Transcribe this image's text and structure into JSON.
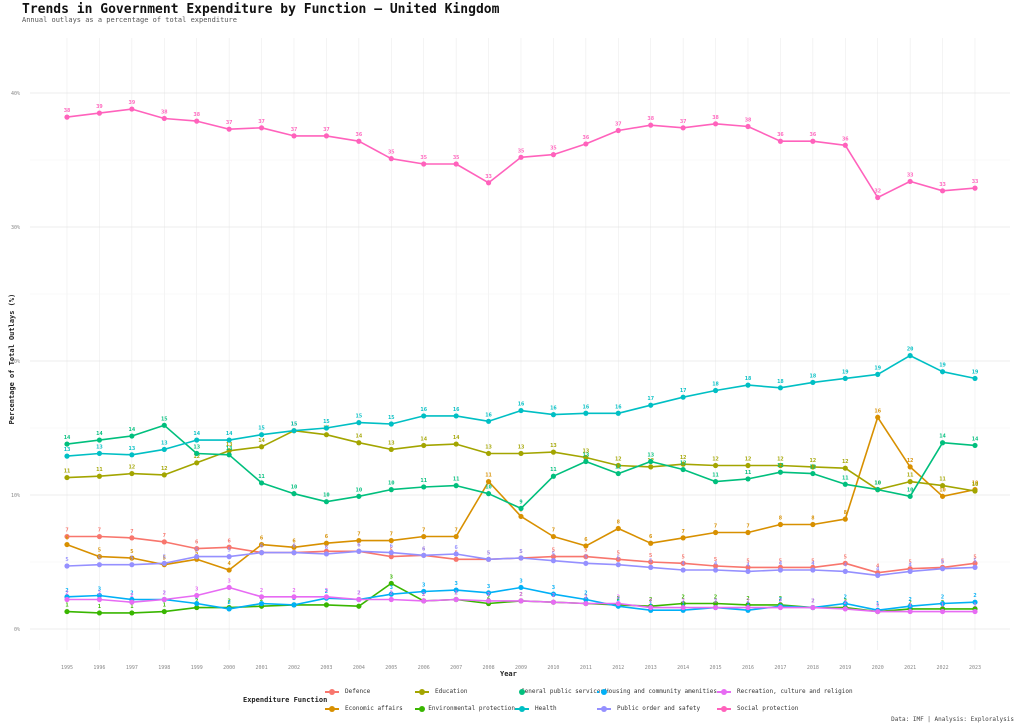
{
  "header": {
    "title": "Trends in Government Expenditure by Function — United Kingdom",
    "subtitle": "Annual outlays as a percentage of total expenditure"
  },
  "axes": {
    "xlabel": "Year",
    "ylabel": "Percentage of Total Outlays (%)",
    "yticks": [
      "0%",
      "10%",
      "20%",
      "30%",
      "40%"
    ]
  },
  "legend": {
    "title": "Expenditure Function"
  },
  "caption": "Data: IMF | Analysis: Exploralysis",
  "chart_data": {
    "type": "line",
    "title": "Trends in Government Expenditure by Function — United Kingdom",
    "subtitle": "Annual outlays as a percentage of total expenditure",
    "xlabel": "Year",
    "ylabel": "Percentage of Total Outlays (%)",
    "ylim": [
      -2.5,
      44
    ],
    "yticks": [
      0,
      10,
      20,
      30,
      40
    ],
    "grid": true,
    "legend_position": "bottom",
    "x": [
      1995,
      1996,
      1997,
      1998,
      1999,
      2000,
      2001,
      2002,
      2003,
      2004,
      2005,
      2006,
      2007,
      2008,
      2009,
      2010,
      2011,
      2012,
      2013,
      2014,
      2015,
      2016,
      2017,
      2018,
      2019,
      2020,
      2021,
      2022,
      2023
    ],
    "series": [
      {
        "name": "Defence",
        "color": "#F8766D",
        "values": [
          6.9,
          6.9,
          6.8,
          6.5,
          6.0,
          6.1,
          5.7,
          5.7,
          5.8,
          5.8,
          5.4,
          5.5,
          5.2,
          5.2,
          5.3,
          5.4,
          5.4,
          5.2,
          5.0,
          4.9,
          4.7,
          4.6,
          4.6,
          4.6,
          4.9,
          4.2,
          4.5,
          4.6,
          4.9
        ]
      },
      {
        "name": "Economic affairs",
        "color": "#D89000",
        "values": [
          6.3,
          5.4,
          5.3,
          4.8,
          5.2,
          4.4,
          6.3,
          6.1,
          6.4,
          6.6,
          6.6,
          6.9,
          6.9,
          11.0,
          8.4,
          6.9,
          6.2,
          7.5,
          6.4,
          6.8,
          7.2,
          7.2,
          7.8,
          7.8,
          8.2,
          15.8,
          12.1,
          9.9,
          10.4
        ]
      },
      {
        "name": "Education",
        "color": "#A3A500",
        "values": [
          11.3,
          11.4,
          11.6,
          11.5,
          12.4,
          13.3,
          13.6,
          14.8,
          14.5,
          13.9,
          13.4,
          13.7,
          13.8,
          13.1,
          13.1,
          13.2,
          12.8,
          12.2,
          12.1,
          12.3,
          12.2,
          12.2,
          12.2,
          12.1,
          12.0,
          10.4,
          11.0,
          10.7,
          10.3
        ]
      },
      {
        "name": "Environmental protection",
        "color": "#39B600",
        "values": [
          1.3,
          1.2,
          1.2,
          1.3,
          1.6,
          1.6,
          1.7,
          1.8,
          1.8,
          1.7,
          3.4,
          2.1,
          2.2,
          1.9,
          2.1,
          2.0,
          1.9,
          1.8,
          1.7,
          1.9,
          1.9,
          1.8,
          1.8,
          1.6,
          1.6,
          1.3,
          1.5,
          1.5,
          1.5
        ]
      },
      {
        "name": "General public services",
        "color": "#00BF7D",
        "values": [
          13.8,
          14.1,
          14.4,
          15.2,
          13.1,
          13.0,
          10.9,
          10.1,
          9.5,
          9.9,
          10.4,
          10.6,
          10.7,
          10.1,
          9.0,
          11.4,
          12.5,
          11.6,
          12.5,
          11.9,
          11.0,
          11.2,
          11.7,
          11.6,
          10.8,
          10.4,
          9.9,
          13.9,
          13.7
        ]
      },
      {
        "name": "Health",
        "color": "#00BFC4",
        "values": [
          12.9,
          13.1,
          13.0,
          13.4,
          14.1,
          14.1,
          14.5,
          14.8,
          15.0,
          15.4,
          15.3,
          15.9,
          15.9,
          15.5,
          16.3,
          16.0,
          16.1,
          16.1,
          16.7,
          17.3,
          17.8,
          18.2,
          18.0,
          18.4,
          18.7,
          19.0,
          20.4,
          19.2,
          18.7
        ]
      },
      {
        "name": "Housing and community amenities",
        "color": "#00B0F6",
        "values": [
          2.4,
          2.5,
          2.2,
          2.2,
          1.9,
          1.5,
          1.9,
          1.8,
          2.3,
          2.2,
          2.6,
          2.8,
          2.9,
          2.7,
          3.1,
          2.6,
          2.2,
          1.7,
          1.4,
          1.4,
          1.6,
          1.4,
          1.7,
          1.6,
          1.9,
          1.4,
          1.7,
          1.9,
          2.0
        ]
      },
      {
        "name": "Public order and safety",
        "color": "#9590FF",
        "values": [
          4.7,
          4.8,
          4.8,
          4.9,
          5.4,
          5.4,
          5.7,
          5.7,
          5.6,
          5.8,
          5.7,
          5.5,
          5.6,
          5.2,
          5.3,
          5.1,
          4.9,
          4.8,
          4.6,
          4.4,
          4.4,
          4.3,
          4.4,
          4.4,
          4.3,
          4.0,
          4.3,
          4.5,
          4.6
        ]
      },
      {
        "name": "Recreation, culture and religion",
        "color": "#E76BF3",
        "values": [
          2.2,
          2.2,
          2.0,
          2.2,
          2.5,
          3.1,
          2.4,
          2.4,
          2.4,
          2.2,
          2.2,
          2.1,
          2.2,
          2.1,
          2.1,
          2.0,
          1.9,
          1.9,
          1.6,
          1.6,
          1.6,
          1.6,
          1.6,
          1.6,
          1.5,
          1.3,
          1.3,
          1.3,
          1.3
        ]
      },
      {
        "name": "Social protection",
        "color": "#FF62BC",
        "values": [
          38.2,
          38.5,
          38.8,
          38.1,
          37.9,
          37.3,
          37.4,
          36.8,
          36.8,
          36.4,
          35.1,
          34.7,
          34.7,
          33.3,
          35.2,
          35.4,
          36.2,
          37.2,
          37.6,
          37.4,
          37.7,
          37.5,
          36.4,
          36.4,
          36.1,
          32.2,
          33.4,
          32.7,
          32.9
        ]
      }
    ]
  }
}
